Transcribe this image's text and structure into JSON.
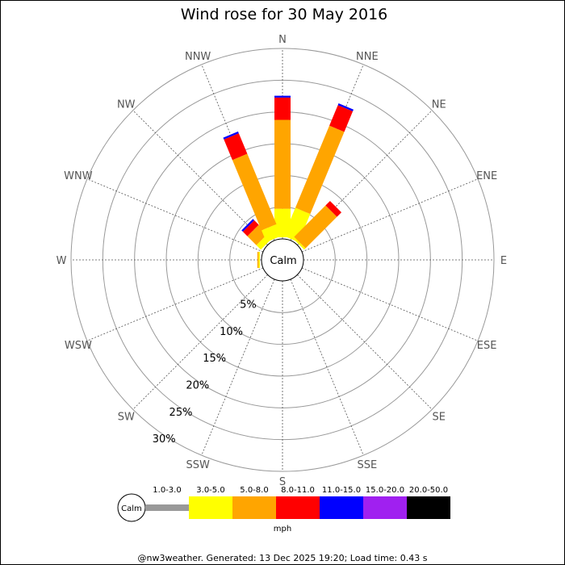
{
  "colors": {
    "calm_range": "#999999",
    "bins": [
      "#ffff00",
      "#ffa500",
      "#ff0000",
      "#0000ff",
      "#a020f0",
      "#000000"
    ]
  },
  "chart_data": {
    "type": "wind-rose",
    "title": "Wind rose for 30 May 2016",
    "directions": [
      "N",
      "NNE",
      "NE",
      "ENE",
      "E",
      "ESE",
      "SE",
      "SSE",
      "S",
      "SSW",
      "SW",
      "WSW",
      "W",
      "WNW",
      "NW",
      "NNW"
    ],
    "radial_ticks": [
      "5%",
      "10%",
      "15%",
      "20%",
      "25%",
      "30%"
    ],
    "radial_max_percent": 30,
    "calm_label": "Calm",
    "units": "mph",
    "speed_bins": [
      "1.0-3.0",
      "3.0-5.0",
      "5.0-8.0",
      "8.0-11.0",
      "11.0-15.0",
      "15.0-20.0",
      "20.0-50.0"
    ],
    "series": [
      {
        "name": "3.0-5.0",
        "values": [
          4.5,
          4.8,
          0.3,
          0,
          0,
          0,
          0,
          0,
          0,
          0,
          0,
          0,
          0.2,
          0,
          1.0,
          2.0
        ]
      },
      {
        "name": "5.0-8.0",
        "values": [
          14.0,
          14.0,
          7.0,
          0,
          0,
          0,
          0,
          0,
          0,
          0,
          0,
          0,
          0.2,
          0,
          2.0,
          12.0
        ]
      },
      {
        "name": "8.0-11.0",
        "values": [
          3.5,
          3.5,
          1.0,
          0,
          0,
          0,
          0,
          0,
          0,
          0,
          0,
          0,
          0,
          0,
          1.0,
          3.5
        ]
      },
      {
        "name": "11.0-15.0",
        "values": [
          0.3,
          0.3,
          0,
          0,
          0,
          0,
          0,
          0,
          0,
          0,
          0,
          0,
          0,
          0,
          0.3,
          0.3
        ]
      },
      {
        "name": "15.0-20.0",
        "values": [
          0,
          0,
          0,
          0,
          0,
          0,
          0,
          0,
          0,
          0,
          0,
          0,
          0,
          0,
          0,
          0
        ]
      },
      {
        "name": "20.0-50.0",
        "values": [
          0,
          0,
          0,
          0,
          0,
          0,
          0,
          0,
          0,
          0,
          0,
          0,
          0,
          0,
          0,
          0
        ]
      }
    ]
  },
  "footer": "@nw3weather. Generated: 13 Dec 2025 19:20; Load time: 0.43 s"
}
